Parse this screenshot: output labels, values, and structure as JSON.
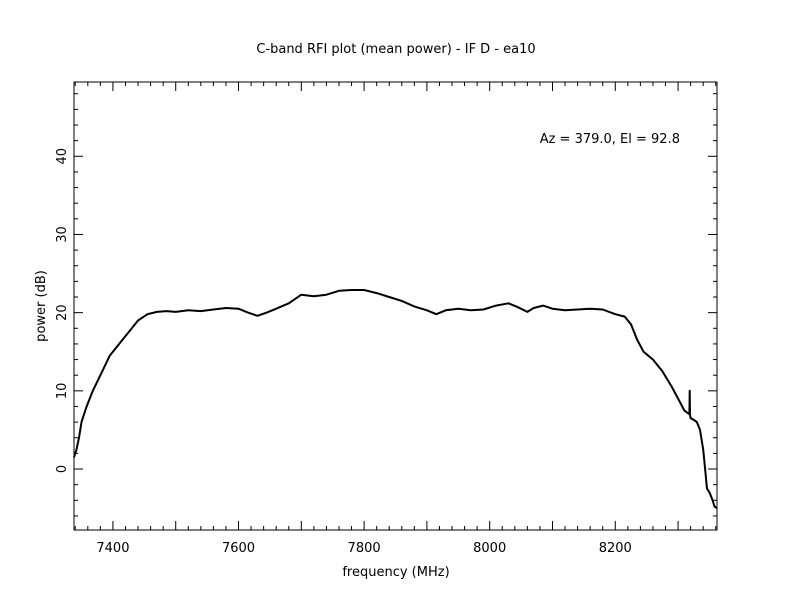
{
  "chart_data": {
    "type": "line",
    "title": "C-band RFI plot (mean power) - IF D - ea10",
    "xlabel": "frequency (MHz)",
    "ylabel": "power (dB)",
    "annotation": "Az = 379.0, El = 92.8",
    "xlim": [
      7338,
      8362
    ],
    "ylim": [
      -7.8,
      49.5
    ],
    "x_ticks": [
      7400,
      7600,
      7800,
      8000,
      8200
    ],
    "x_tick_labels": [
      "7400",
      "7600",
      "7800",
      "8000",
      "8200"
    ],
    "y_ticks": [
      0,
      10,
      20,
      30,
      40
    ],
    "y_tick_labels": [
      "0",
      "10",
      "20",
      "30",
      "40"
    ],
    "grid": false,
    "series": [
      {
        "color": "#000000",
        "x": [
          7338,
          7342,
          7346,
          7350,
          7358,
          7368,
          7380,
          7395,
          7410,
          7425,
          7440,
          7455,
          7470,
          7485,
          7500,
          7520,
          7540,
          7560,
          7580,
          7600,
          7615,
          7630,
          7645,
          7660,
          7680,
          7700,
          7720,
          7740,
          7760,
          7780,
          7800,
          7820,
          7840,
          7860,
          7880,
          7900,
          7915,
          7930,
          7950,
          7970,
          7990,
          8010,
          8030,
          8045,
          8060,
          8070,
          8085,
          8100,
          8120,
          8140,
          8160,
          8180,
          8200,
          8215,
          8225,
          8235,
          8245,
          8260,
          8275,
          8290,
          8300,
          8310,
          8318,
          8318.5,
          8319,
          8320,
          8325,
          8330,
          8335,
          8340,
          8343,
          8346,
          8350,
          8355,
          8358,
          8362
        ],
        "values": [
          1.5,
          2.5,
          4.0,
          6.0,
          8.0,
          10.0,
          12.0,
          14.5,
          16.0,
          17.5,
          19.0,
          19.8,
          20.1,
          20.2,
          20.1,
          20.3,
          20.2,
          20.4,
          20.6,
          20.5,
          20.0,
          19.6,
          20.0,
          20.5,
          21.2,
          22.3,
          22.1,
          22.3,
          22.8,
          22.9,
          22.9,
          22.5,
          22.0,
          21.5,
          20.8,
          20.3,
          19.8,
          20.3,
          20.5,
          20.3,
          20.4,
          20.9,
          21.2,
          20.7,
          20.1,
          20.6,
          20.9,
          20.5,
          20.3,
          20.4,
          20.5,
          20.4,
          19.8,
          19.5,
          18.5,
          16.5,
          15.0,
          14.0,
          12.5,
          10.5,
          9.0,
          7.5,
          7.0,
          10.0,
          7.0,
          6.5,
          6.3,
          6.0,
          5.0,
          2.5,
          0.0,
          -2.5,
          -3.0,
          -4.0,
          -4.8,
          -5.0
        ]
      }
    ]
  }
}
